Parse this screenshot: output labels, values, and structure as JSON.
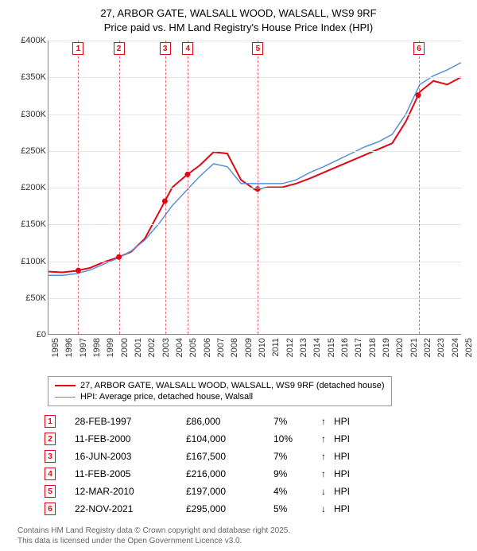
{
  "title_line1": "27, ARBOR GATE, WALSALL WOOD, WALSALL, WS9 9RF",
  "title_line2": "Price paid vs. HM Land Registry's House Price Index (HPI)",
  "chart": {
    "type": "line",
    "x": {
      "min": 1995,
      "max": 2025,
      "tick_step": 1
    },
    "y": {
      "min": 0,
      "max": 400000,
      "tick_step": 50000,
      "prefix": "£",
      "suffix_k": "K"
    },
    "background_color": "#ffffff",
    "grid_color": "#e6e6e6",
    "axis_color": "#888888",
    "series": [
      {
        "id": "price_paid",
        "label": "27, ARBOR GATE, WALSALL WOOD, WALSALL, WS9 9RF (detached house)",
        "color": "#e30613",
        "line_width": 2,
        "points": [
          [
            1995,
            85000
          ],
          [
            1996,
            84000
          ],
          [
            1997,
            86000
          ],
          [
            1998,
            90000
          ],
          [
            1999,
            98000
          ],
          [
            2000,
            104000
          ],
          [
            2001,
            112000
          ],
          [
            2002,
            130000
          ],
          [
            2003,
            165000
          ],
          [
            2004,
            200000
          ],
          [
            2005,
            216000
          ],
          [
            2006,
            230000
          ],
          [
            2007,
            248000
          ],
          [
            2008,
            246000
          ],
          [
            2009,
            210000
          ],
          [
            2010,
            197000
          ],
          [
            2011,
            200000
          ],
          [
            2012,
            200000
          ],
          [
            2013,
            205000
          ],
          [
            2014,
            212000
          ],
          [
            2015,
            220000
          ],
          [
            2016,
            228000
          ],
          [
            2017,
            236000
          ],
          [
            2018,
            244000
          ],
          [
            2019,
            252000
          ],
          [
            2020,
            260000
          ],
          [
            2021,
            290000
          ],
          [
            2022,
            330000
          ],
          [
            2023,
            345000
          ],
          [
            2024,
            340000
          ],
          [
            2025,
            350000
          ]
        ]
      },
      {
        "id": "hpi",
        "label": "HPI: Average price, detached house, Walsall",
        "color": "#5b8fd6",
        "line_width": 1.5,
        "points": [
          [
            1995,
            80000
          ],
          [
            1996,
            80000
          ],
          [
            1997,
            82000
          ],
          [
            1998,
            87000
          ],
          [
            1999,
            95000
          ],
          [
            2000,
            103000
          ],
          [
            2001,
            113000
          ],
          [
            2002,
            128000
          ],
          [
            2003,
            150000
          ],
          [
            2004,
            175000
          ],
          [
            2005,
            195000
          ],
          [
            2006,
            215000
          ],
          [
            2007,
            232000
          ],
          [
            2008,
            228000
          ],
          [
            2009,
            205000
          ],
          [
            2010,
            205000
          ],
          [
            2011,
            205000
          ],
          [
            2012,
            205000
          ],
          [
            2013,
            210000
          ],
          [
            2014,
            220000
          ],
          [
            2015,
            228000
          ],
          [
            2016,
            237000
          ],
          [
            2017,
            246000
          ],
          [
            2018,
            255000
          ],
          [
            2019,
            262000
          ],
          [
            2020,
            272000
          ],
          [
            2021,
            300000
          ],
          [
            2022,
            340000
          ],
          [
            2023,
            352000
          ],
          [
            2024,
            360000
          ],
          [
            2025,
            370000
          ]
        ]
      }
    ],
    "markers": [
      {
        "n": 1,
        "year": 1997.16
      },
      {
        "n": 2,
        "year": 2000.11
      },
      {
        "n": 3,
        "year": 2003.46
      },
      {
        "n": 4,
        "year": 2005.11
      },
      {
        "n": 5,
        "year": 2010.2
      },
      {
        "n": 6,
        "year": 2021.89
      }
    ]
  },
  "sales": [
    {
      "n": 1,
      "date": "28-FEB-1997",
      "price": "£86,000",
      "pct": "7%",
      "dir": "up",
      "suffix": "HPI"
    },
    {
      "n": 2,
      "date": "11-FEB-2000",
      "price": "£104,000",
      "pct": "10%",
      "dir": "up",
      "suffix": "HPI"
    },
    {
      "n": 3,
      "date": "16-JUN-2003",
      "price": "£167,500",
      "pct": "7%",
      "dir": "up",
      "suffix": "HPI"
    },
    {
      "n": 4,
      "date": "11-FEB-2005",
      "price": "£216,000",
      "pct": "9%",
      "dir": "up",
      "suffix": "HPI"
    },
    {
      "n": 5,
      "date": "12-MAR-2010",
      "price": "£197,000",
      "pct": "4%",
      "dir": "down",
      "suffix": "HPI"
    },
    {
      "n": 6,
      "date": "22-NOV-2021",
      "price": "£295,000",
      "pct": "5%",
      "dir": "down",
      "suffix": "HPI"
    }
  ],
  "footer_line1": "Contains HM Land Registry data © Crown copyright and database right 2025.",
  "footer_line2": "This data is licensed under the Open Government Licence v3.0.",
  "arrows": {
    "up": "↑",
    "down": "↓"
  }
}
